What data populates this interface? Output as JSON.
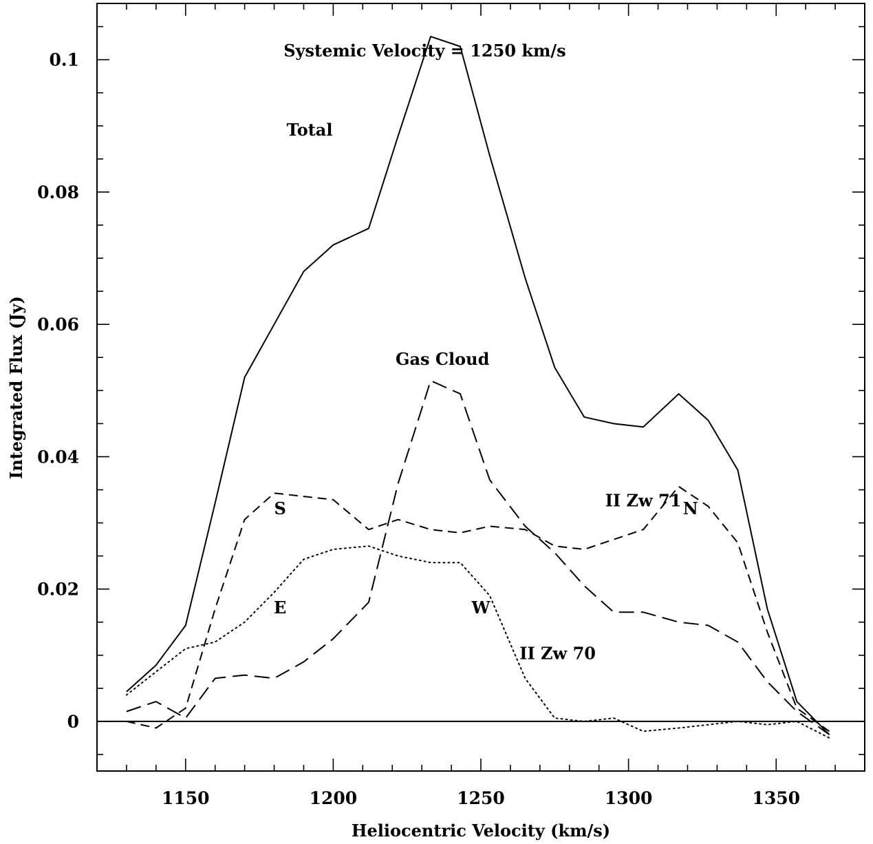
{
  "chart_data": {
    "type": "line",
    "xlabel": "Heliocentric Velocity (km/s)",
    "ylabel": "Integrated Flux (Jy)",
    "xlim": [
      1120,
      1380
    ],
    "ylim": [
      -0.0075,
      0.1085
    ],
    "x_ticks": [
      1150,
      1200,
      1250,
      1300,
      1350
    ],
    "x_tick_labels": [
      "1150",
      "1200",
      "1250",
      "1300",
      "1350"
    ],
    "y_ticks": [
      0,
      0.02,
      0.04,
      0.06,
      0.08,
      0.1
    ],
    "y_tick_labels": [
      "0",
      "0.02",
      "0.04",
      "0.06",
      "0.08",
      "0.1"
    ],
    "zero_line": true,
    "grid": false,
    "annotations": [
      {
        "text": "Systemic Velocity = 1250 km/s",
        "x": 1231,
        "y": 0.1005
      },
      {
        "text": "Total",
        "x": 1192,
        "y": 0.0885
      },
      {
        "text": "Gas Cloud",
        "x": 1237,
        "y": 0.0539
      },
      {
        "text": "II Zw 71",
        "x": 1305,
        "y": 0.0325
      },
      {
        "text": "N",
        "x": 1321,
        "y": 0.0313
      },
      {
        "text": "S",
        "x": 1182,
        "y": 0.0313
      },
      {
        "text": "E",
        "x": 1182,
        "y": 0.0163
      },
      {
        "text": "W",
        "x": 1250,
        "y": 0.0163
      },
      {
        "text": "II Zw 70",
        "x": 1276,
        "y": 0.0094
      }
    ],
    "series": [
      {
        "style": "solid",
        "x": [
          1130,
          1140,
          1150,
          1160,
          1170,
          1180,
          1190,
          1200,
          1212,
          1222,
          1233,
          1243,
          1253,
          1265,
          1275,
          1285,
          1295,
          1305,
          1317,
          1327,
          1337,
          1347,
          1357,
          1368
        ],
        "values": [
          0.0045,
          0.0085,
          0.0145,
          0.033,
          0.052,
          0.06,
          0.068,
          0.072,
          0.0745,
          0.0885,
          0.1035,
          0.102,
          0.0855,
          0.067,
          0.0535,
          0.046,
          0.045,
          0.0445,
          0.0495,
          0.0455,
          0.038,
          0.017,
          0.003,
          -0.002
        ]
      },
      {
        "style": "long-dash",
        "x": [
          1130,
          1140,
          1150,
          1160,
          1170,
          1180,
          1190,
          1200,
          1212,
          1222,
          1233,
          1243,
          1253,
          1265,
          1275,
          1285,
          1295,
          1305,
          1317,
          1327,
          1337,
          1347,
          1357,
          1368
        ],
        "values": [
          0.0015,
          0.003,
          0.0005,
          0.0065,
          0.007,
          0.0065,
          0.009,
          0.0125,
          0.018,
          0.036,
          0.0515,
          0.0495,
          0.0365,
          0.0295,
          0.0255,
          0.0205,
          0.0165,
          0.0165,
          0.015,
          0.0145,
          0.012,
          0.006,
          0.0015,
          -0.002
        ]
      },
      {
        "style": "short-dash",
        "x": [
          1130,
          1140,
          1150,
          1160,
          1170,
          1180,
          1190,
          1200,
          1212,
          1222,
          1233,
          1243,
          1253,
          1265,
          1275,
          1285,
          1295,
          1305,
          1317,
          1327,
          1337,
          1347,
          1357,
          1368
        ],
        "values": [
          0.0,
          -0.001,
          0.002,
          0.017,
          0.0305,
          0.0345,
          0.034,
          0.0335,
          0.029,
          0.0305,
          0.029,
          0.0285,
          0.0295,
          0.029,
          0.0265,
          0.026,
          0.0275,
          0.029,
          0.0355,
          0.0325,
          0.027,
          0.0135,
          0.002,
          -0.0015
        ]
      },
      {
        "style": "dotted",
        "x": [
          1130,
          1140,
          1150,
          1160,
          1170,
          1180,
          1190,
          1200,
          1212,
          1222,
          1233,
          1243,
          1253,
          1265,
          1275,
          1285,
          1295,
          1305,
          1317,
          1327,
          1337,
          1347,
          1357,
          1368
        ],
        "values": [
          0.004,
          0.0075,
          0.011,
          0.012,
          0.015,
          0.0195,
          0.0245,
          0.026,
          0.0265,
          0.025,
          0.024,
          0.024,
          0.019,
          0.0065,
          0.0005,
          0.0,
          0.0005,
          -0.0015,
          -0.001,
          -0.0005,
          0.0,
          -0.0005,
          0.0,
          -0.0025
        ]
      }
    ]
  }
}
